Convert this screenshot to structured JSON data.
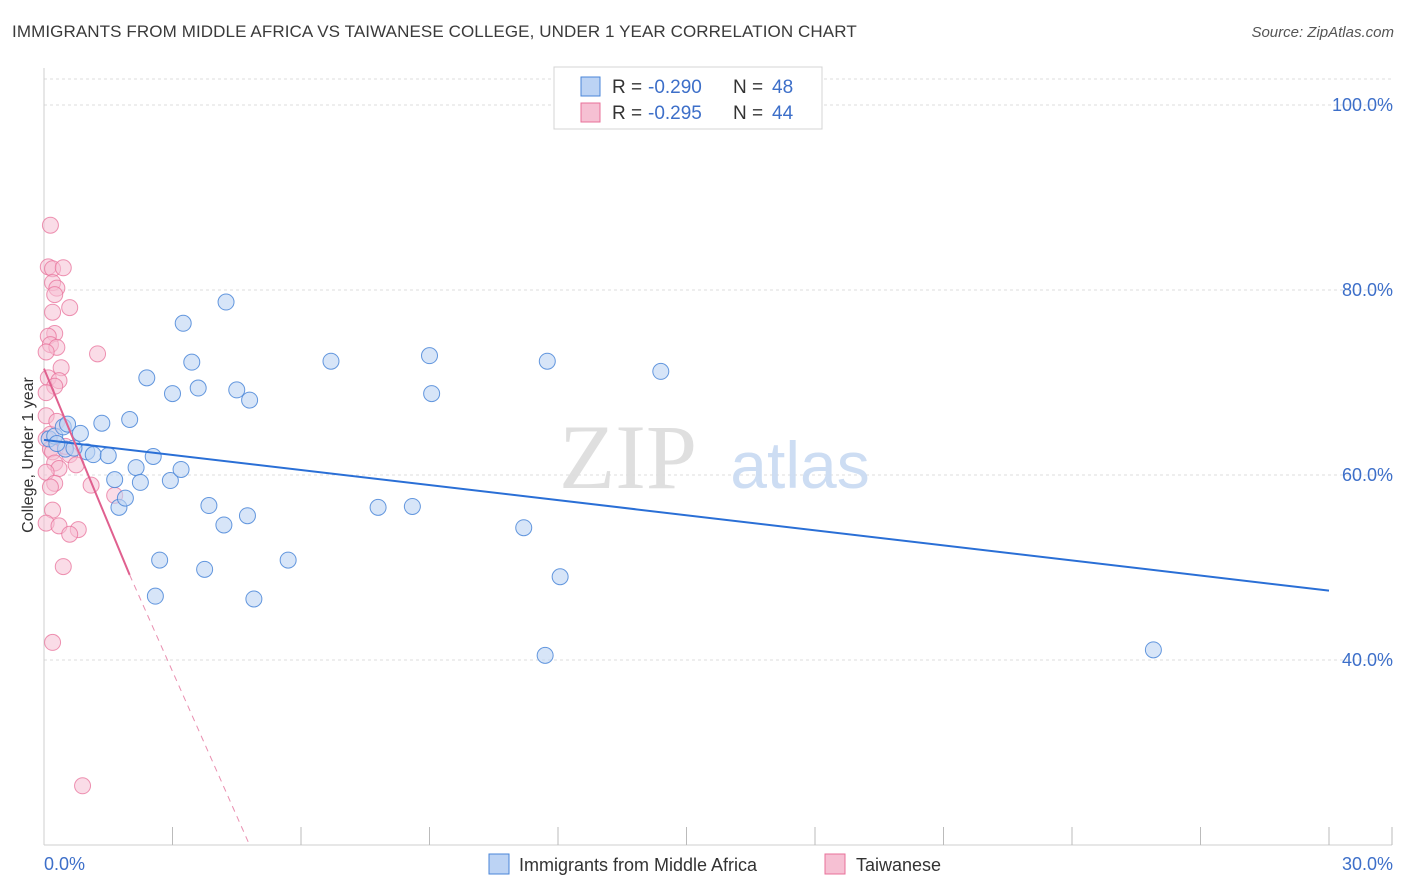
{
  "chart_title": "IMMIGRANTS FROM MIDDLE AFRICA VS TAIWANESE COLLEGE, UNDER 1 YEAR CORRELATION CHART",
  "source": "Source: ZipAtlas.com",
  "colors": {
    "blue": "#4a86d8",
    "blue_fill": "#bcd3f4",
    "blue_line": "#2a6fd6",
    "pink": "#e8709a",
    "pink_fill": "#f6c0d3",
    "pink_line": "#e0608f",
    "axis_label": "#3d6fc9",
    "grid": "#dddddd"
  },
  "legend": {
    "rows": [
      {
        "r_label": "R = ",
        "r_value": "-0.290",
        "n_label": "N = ",
        "n_value": "48"
      },
      {
        "r_label": "R = ",
        "r_value": "-0.295",
        "n_label": "N = ",
        "n_value": "44"
      }
    ]
  },
  "bottom_legend": {
    "series1": "Immigrants from Middle Africa",
    "series2": "Taiwanese"
  },
  "watermark": {
    "zip": "ZIP",
    "atlas": "atlas"
  },
  "chart_data": {
    "type": "scatter",
    "title": "IMMIGRANTS FROM MIDDLE AFRICA VS TAIWANESE COLLEGE, UNDER 1 YEAR CORRELATION CHART",
    "xlabel": "",
    "ylabel": "College, Under 1 year",
    "xlim": [
      0,
      30
    ],
    "ylim": [
      20,
      104
    ],
    "x_tick_labels": [
      "0.0%",
      "30.0%"
    ],
    "y_ticks": [
      40,
      60,
      80,
      100
    ],
    "y_tick_labels": [
      "40.0%",
      "60.0%",
      "80.0%",
      "100.0%"
    ],
    "series": [
      {
        "name": "Immigrants from Middle Africa",
        "r": -0.29,
        "n": 48,
        "trend": {
          "x0": 0.0,
          "y0": 63.8,
          "x1": 30.0,
          "y1": 47.5
        },
        "points": [
          [
            0.12,
            63.9
          ],
          [
            0.25,
            64.2
          ],
          [
            0.45,
            65.2
          ],
          [
            0.5,
            62.8
          ],
          [
            0.55,
            65.5
          ],
          [
            0.85,
            64.5
          ],
          [
            1.0,
            62.5
          ],
          [
            1.15,
            62.2
          ],
          [
            1.35,
            65.6
          ],
          [
            1.5,
            62.1
          ],
          [
            1.65,
            59.5
          ],
          [
            1.75,
            56.5
          ],
          [
            1.9,
            57.5
          ],
          [
            2.0,
            66.0
          ],
          [
            2.15,
            60.8
          ],
          [
            2.25,
            59.2
          ],
          [
            2.4,
            70.5
          ],
          [
            2.55,
            62.0
          ],
          [
            2.7,
            50.8
          ],
          [
            2.6,
            46.9
          ],
          [
            2.95,
            59.4
          ],
          [
            3.0,
            68.8
          ],
          [
            3.2,
            60.6
          ],
          [
            3.25,
            76.4
          ],
          [
            3.45,
            72.2
          ],
          [
            3.6,
            69.4
          ],
          [
            3.75,
            49.8
          ],
          [
            3.85,
            56.7
          ],
          [
            4.2,
            54.6
          ],
          [
            4.25,
            78.7
          ],
          [
            4.5,
            69.2
          ],
          [
            4.75,
            55.6
          ],
          [
            4.8,
            68.1
          ],
          [
            4.9,
            46.6
          ],
          [
            5.7,
            50.8
          ],
          [
            6.7,
            72.3
          ],
          [
            7.8,
            56.5
          ],
          [
            8.6,
            56.6
          ],
          [
            9.0,
            72.9
          ],
          [
            9.05,
            68.8
          ],
          [
            11.2,
            54.3
          ],
          [
            11.7,
            40.5
          ],
          [
            11.75,
            72.3
          ],
          [
            12.05,
            49.0
          ],
          [
            14.4,
            71.2
          ],
          [
            25.9,
            41.1
          ],
          [
            0.3,
            63.4
          ],
          [
            0.7,
            62.9
          ]
        ]
      },
      {
        "name": "Taiwanese",
        "r": -0.295,
        "n": 44,
        "trend": {
          "x0": 0.0,
          "y0": 71.5,
          "x1": 2.0,
          "y1": 49.2,
          "dash_x1": 4.8,
          "dash_y1": 20.0
        },
        "points": [
          [
            0.15,
            87.0
          ],
          [
            0.1,
            82.5
          ],
          [
            0.2,
            82.3
          ],
          [
            0.45,
            82.4
          ],
          [
            0.2,
            80.8
          ],
          [
            0.3,
            80.2
          ],
          [
            0.25,
            79.5
          ],
          [
            0.6,
            78.1
          ],
          [
            0.2,
            77.6
          ],
          [
            0.25,
            75.3
          ],
          [
            0.1,
            75.0
          ],
          [
            0.15,
            74.1
          ],
          [
            0.3,
            73.8
          ],
          [
            0.05,
            73.3
          ],
          [
            1.25,
            73.1
          ],
          [
            0.4,
            71.6
          ],
          [
            0.1,
            70.5
          ],
          [
            0.35,
            70.2
          ],
          [
            0.25,
            69.6
          ],
          [
            0.05,
            66.4
          ],
          [
            0.15,
            64.4
          ],
          [
            0.05,
            63.9
          ],
          [
            0.15,
            62.8
          ],
          [
            0.2,
            62.5
          ],
          [
            0.6,
            62.2
          ],
          [
            0.25,
            61.3
          ],
          [
            0.75,
            61.1
          ],
          [
            0.35,
            60.7
          ],
          [
            0.05,
            60.3
          ],
          [
            0.25,
            59.1
          ],
          [
            1.1,
            58.9
          ],
          [
            0.15,
            58.7
          ],
          [
            1.65,
            57.8
          ],
          [
            0.2,
            56.2
          ],
          [
            0.05,
            54.8
          ],
          [
            0.35,
            54.5
          ],
          [
            0.8,
            54.1
          ],
          [
            0.6,
            53.6
          ],
          [
            0.45,
            50.1
          ],
          [
            0.2,
            41.9
          ],
          [
            0.9,
            26.4
          ],
          [
            0.05,
            68.9
          ],
          [
            0.3,
            65.8
          ],
          [
            0.5,
            63.1
          ]
        ]
      }
    ]
  }
}
